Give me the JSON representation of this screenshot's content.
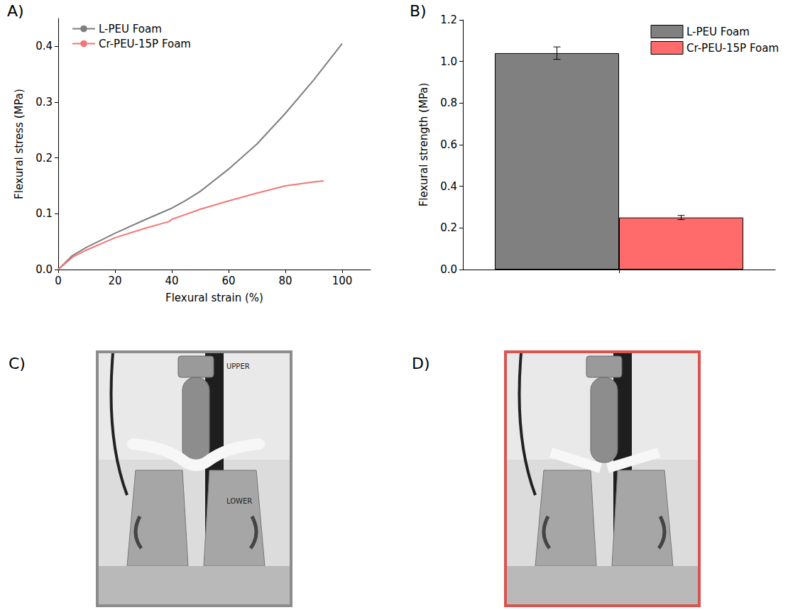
{
  "chart_data": [
    {
      "panel_label": "A)",
      "type": "line",
      "x_label": "Flexural strain (%)",
      "y_label": "Flexural stress (MPa)",
      "xlim": [
        0,
        110
      ],
      "xticks": [
        0,
        20,
        40,
        60,
        80,
        100
      ],
      "ylim": [
        0,
        0.45
      ],
      "yticks": [
        {
          "value": 0,
          "label": "0.0"
        },
        0.1,
        0.2,
        0.3,
        0.4
      ],
      "grid": false,
      "legend": "upper left",
      "series": [
        {
          "name": "L-PEU Foam",
          "color": "#7f7f7f",
          "x": [
            0,
            5,
            10,
            20,
            30,
            40,
            45,
            50,
            60,
            70,
            80,
            90,
            100
          ],
          "values": [
            0,
            0.025,
            0.04,
            0.065,
            0.088,
            0.11,
            0.124,
            0.14,
            0.18,
            0.225,
            0.28,
            0.34,
            0.405
          ]
        },
        {
          "name": "Cr-PEU-15P Foam",
          "color": "#f47575",
          "x": [
            0,
            5,
            10,
            20,
            30,
            39,
            40,
            50,
            60,
            70,
            80,
            90,
            93.5
          ],
          "values": [
            0,
            0.022,
            0.035,
            0.057,
            0.073,
            0.086,
            0.09,
            0.108,
            0.123,
            0.137,
            0.15,
            0.157,
            0.159
          ]
        }
      ]
    },
    {
      "panel_label": "B)",
      "type": "bar",
      "y_label": "Flexural strength (MPa)",
      "categories": [
        null
      ],
      "ylim": [
        0,
        1.2
      ],
      "yticks": [
        {
          "value": 0,
          "label": "0.0"
        },
        0.2,
        0.4,
        0.6,
        0.8,
        {
          "value": 1,
          "label": "1.0"
        },
        1.2
      ],
      "grid": false,
      "legend": "upper right",
      "tick_labels": "y",
      "series": [
        {
          "name": "L-PEU Foam",
          "color": "#808080",
          "values": [
            1.04
          ],
          "errors": [
            0.03
          ]
        },
        {
          "name": "Cr-PEU-15P Foam",
          "color": "#ff6b6b",
          "values": [
            0.25
          ],
          "errors": [
            0.01
          ]
        }
      ]
    }
  ],
  "photos": [
    {
      "panel_label": "C)",
      "frame_color": "#8c8c8c",
      "texts": [
        "UPPER",
        "LOWER"
      ]
    },
    {
      "panel_label": "D)",
      "frame_color": "#d9534f",
      "texts": []
    }
  ]
}
